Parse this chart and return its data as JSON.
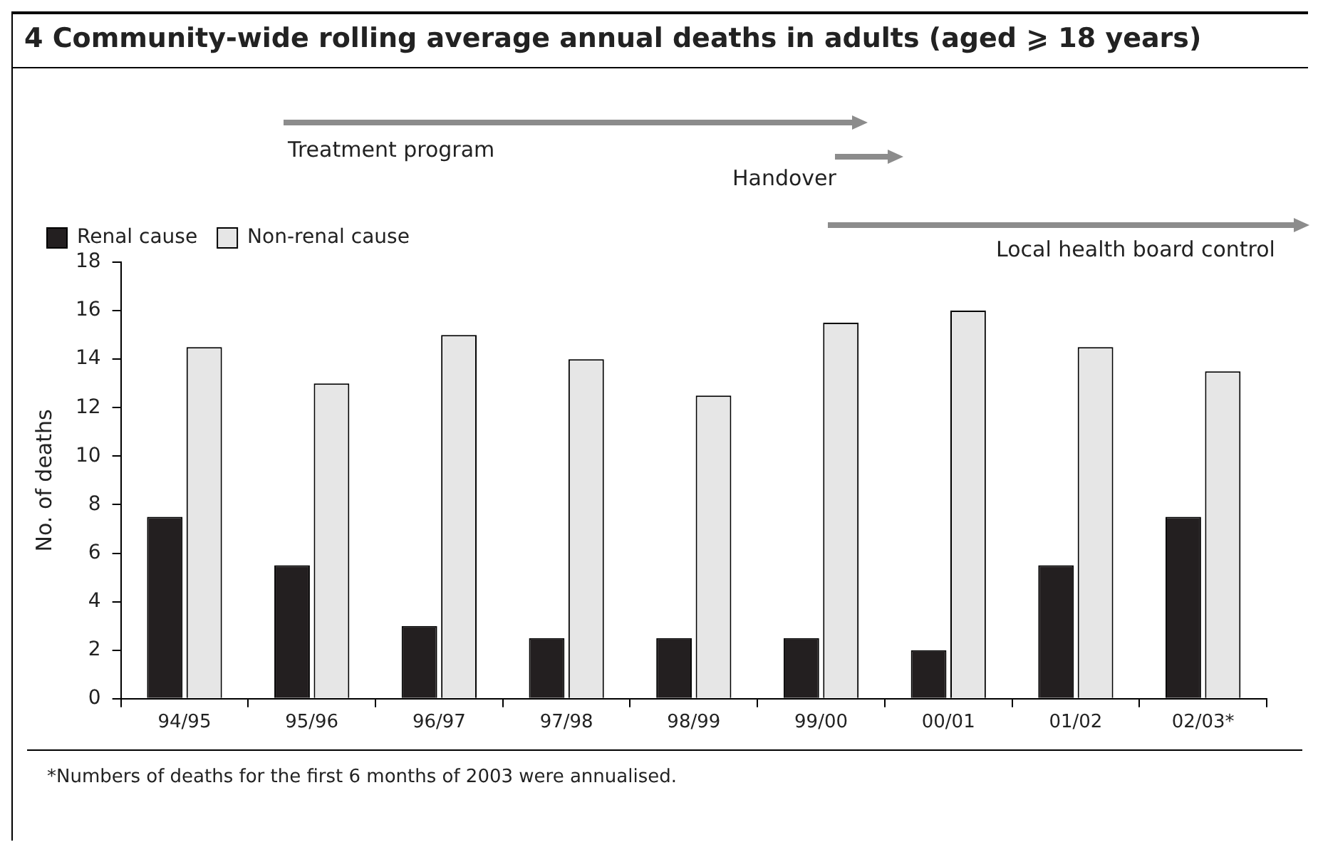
{
  "chart_data": {
    "type": "bar",
    "title": "4 Community-wide rolling average annual deaths in adults (aged ⩾ 18 years)",
    "ylabel": "No. of deaths",
    "categories": [
      "94/95",
      "95/96",
      "96/97",
      "97/98",
      "98/99",
      "99/00",
      "00/01",
      "01/02",
      "02/03*"
    ],
    "series": [
      {
        "name": "Renal cause",
        "color": "#231f20",
        "values": [
          7.5,
          5.5,
          3,
          2.5,
          2.5,
          2.5,
          2,
          5.5,
          7.5
        ]
      },
      {
        "name": "Non-renal cause",
        "color": "#e6e6e6",
        "values": [
          14.5,
          13,
          15,
          14,
          12.5,
          15.5,
          16,
          14.5,
          13.5
        ]
      }
    ],
    "ylim": [
      0,
      18
    ],
    "yticks": [
      0,
      2,
      4,
      6,
      8,
      10,
      12,
      14,
      16,
      18
    ],
    "grid": false,
    "legend": "top left",
    "annotations": [
      "Treatment program",
      "Handover",
      "Local health board control",
      "*Numbers of deaths for the first 6 months of 2003 were annualised."
    ]
  }
}
